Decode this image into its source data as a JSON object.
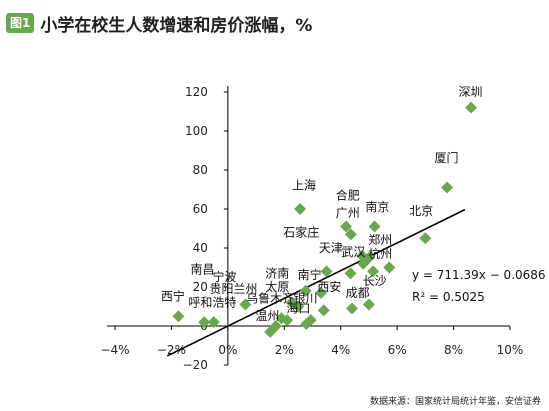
{
  "figure": {
    "badge": "图1",
    "title": "小学在校生人数增速和房价涨幅，%",
    "source": "数据来源：国家统计局统计年鉴，安信证券"
  },
  "colors": {
    "marker": "#6aa84f",
    "trend": "#000000",
    "axis": "#000000"
  },
  "chart_data": {
    "type": "scatter",
    "title": "小学在校生人数增速和房价涨幅，%",
    "xlim": [
      -0.04,
      0.1
    ],
    "ylim": [
      -20,
      120
    ],
    "x_ticks": [
      {
        "v": -0.04,
        "label": "−4%"
      },
      {
        "v": -0.02,
        "label": "−2%"
      },
      {
        "v": 0.0,
        "label": "0%"
      },
      {
        "v": 0.02,
        "label": "2%"
      },
      {
        "v": 0.04,
        "label": "4%"
      },
      {
        "v": 0.06,
        "label": "6%"
      },
      {
        "v": 0.08,
        "label": "8%"
      },
      {
        "v": 0.1,
        "label": "10%"
      }
    ],
    "y_ticks": [
      {
        "v": -20,
        "label": "−20"
      },
      {
        "v": 0,
        "label": "0"
      },
      {
        "v": 20,
        "label": "20"
      },
      {
        "v": 40,
        "label": "40"
      },
      {
        "v": 60,
        "label": "60"
      },
      {
        "v": 80,
        "label": "80"
      },
      {
        "v": 100,
        "label": "100"
      },
      {
        "v": 120,
        "label": "120"
      }
    ],
    "points": [
      {
        "x": 0.0862,
        "y": 112
      },
      {
        "x": 0.0777,
        "y": 71
      },
      {
        "x": 0.0256,
        "y": 60
      },
      {
        "x": 0.07,
        "y": 45
      },
      {
        "x": 0.0419,
        "y": 51
      },
      {
        "x": 0.0436,
        "y": 47
      },
      {
        "x": 0.052,
        "y": 51
      },
      {
        "x": 0.0572,
        "y": 30
      },
      {
        "x": 0.0515,
        "y": 28
      },
      {
        "x": 0.0476,
        "y": 36
      },
      {
        "x": 0.05,
        "y": 35
      },
      {
        "x": 0.048,
        "y": 32
      },
      {
        "x": 0.0435,
        "y": 27
      },
      {
        "x": 0.05,
        "y": 11
      },
      {
        "x": 0.044,
        "y": 9
      },
      {
        "x": 0.035,
        "y": 28
      },
      {
        "x": 0.033,
        "y": 17
      },
      {
        "x": 0.0276,
        "y": 18
      },
      {
        "x": 0.025,
        "y": 10
      },
      {
        "x": 0.0226,
        "y": 12
      },
      {
        "x": 0.019,
        "y": 4
      },
      {
        "x": 0.021,
        "y": 3
      },
      {
        "x": 0.017,
        "y": 0
      },
      {
        "x": 0.015,
        "y": -3
      },
      {
        "x": 0.0294,
        "y": 3
      },
      {
        "x": 0.0278,
        "y": 1
      },
      {
        "x": 0.034,
        "y": 8
      },
      {
        "x": 0.0062,
        "y": 11
      },
      {
        "x": -0.005,
        "y": 2
      },
      {
        "x": -0.0084,
        "y": 2
      },
      {
        "x": -0.0175,
        "y": 5
      }
    ],
    "annotations": [
      {
        "text": "深圳",
        "x": 0.086,
        "y": 118
      },
      {
        "text": "厦门",
        "x": 0.0775,
        "y": 84
      },
      {
        "text": "上海",
        "x": 0.027,
        "y": 70
      },
      {
        "text": "北京",
        "x": 0.0685,
        "y": 57
      },
      {
        "text": "合肥",
        "x": 0.0425,
        "y": 65
      },
      {
        "text": "广州",
        "x": 0.0425,
        "y": 56
      },
      {
        "text": "南京",
        "x": 0.053,
        "y": 59
      },
      {
        "text": "郑州",
        "x": 0.054,
        "y": 42
      },
      {
        "text": "杭州",
        "x": 0.054,
        "y": 35
      },
      {
        "text": "天津",
        "x": 0.0365,
        "y": 38
      },
      {
        "text": "武汉",
        "x": 0.0445,
        "y": 36
      },
      {
        "text": "石家庄",
        "x": 0.026,
        "y": 46
      },
      {
        "text": "南宁",
        "x": 0.029,
        "y": 24
      },
      {
        "text": "济南",
        "x": 0.0175,
        "y": 25
      },
      {
        "text": "长沙",
        "x": 0.052,
        "y": 21
      },
      {
        "text": "太原",
        "x": 0.0175,
        "y": 18
      },
      {
        "text": "成都",
        "x": 0.046,
        "y": 15
      },
      {
        "text": "西安",
        "x": 0.036,
        "y": 18
      },
      {
        "text": "宁波",
        "x": -0.0012,
        "y": 23
      },
      {
        "text": "南昌",
        "x": -0.009,
        "y": 27
      },
      {
        "text": "贵阳兰州",
        "x": 0.002,
        "y": 17
      },
      {
        "text": "乌鲁木齐",
        "x": 0.015,
        "y": 12
      },
      {
        "text": "银川",
        "x": 0.0275,
        "y": 12
      },
      {
        "text": "西宁",
        "x": -0.0195,
        "y": 13
      },
      {
        "text": "呼和浩特",
        "x": -0.0055,
        "y": 10
      },
      {
        "text": "海口",
        "x": 0.025,
        "y": 7
      },
      {
        "text": "温州",
        "x": 0.014,
        "y": 3
      }
    ],
    "trendline": {
      "slope": 711.39,
      "intercept": -0.0686,
      "x_range": [
        -0.0215,
        0.084
      ]
    },
    "equation_label": "y = 711.39x − 0.0686",
    "r2_label": "R² = 0.5025"
  }
}
